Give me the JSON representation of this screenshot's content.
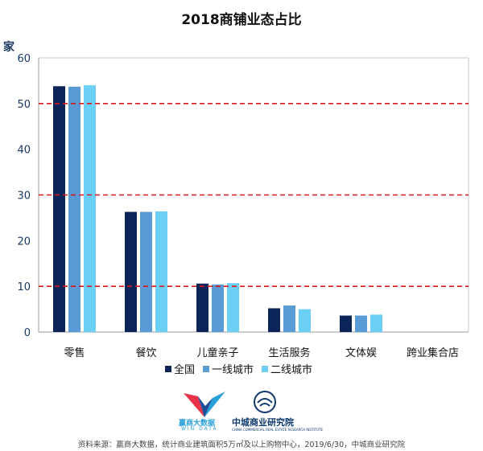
{
  "chart_data": {
    "type": "bar",
    "title": "2018商铺业态占比",
    "ylabel": "家",
    "ylim": [
      0,
      60
    ],
    "yticks": [
      0,
      10,
      20,
      30,
      40,
      50,
      60
    ],
    "reference_lines": [
      10,
      30,
      50
    ],
    "categories": [
      "零售",
      "餐饮",
      "儿童亲子",
      "生活服务",
      "文体娱",
      "跨业集合店"
    ],
    "series": [
      {
        "name": "全国",
        "color": "#0b2559",
        "values": [
          53.8,
          26.3,
          10.6,
          5.2,
          3.6,
          0
        ]
      },
      {
        "name": "一线城市",
        "color": "#5b9bd5",
        "values": [
          53.7,
          26.3,
          10.4,
          5.8,
          3.6,
          0
        ]
      },
      {
        "name": "二线城市",
        "color": "#6ccff6",
        "values": [
          54.0,
          26.4,
          10.7,
          5.0,
          3.8,
          0
        ]
      }
    ],
    "grid": false,
    "legend_position": "bottom"
  },
  "logos": {
    "win_data": "赢商大数据",
    "win_data_sub": "WIN DATA",
    "zhongcheng": "中城商业研究院",
    "zhongcheng_sub": "CHINA COMMERCIAL REAL ESTATE RESEARCH INSTITUTE"
  },
  "source": "资料来源：赢商大数据，统计商业建筑面积5万㎡及以上购物中心，2019/6/30，中城商业研究院"
}
